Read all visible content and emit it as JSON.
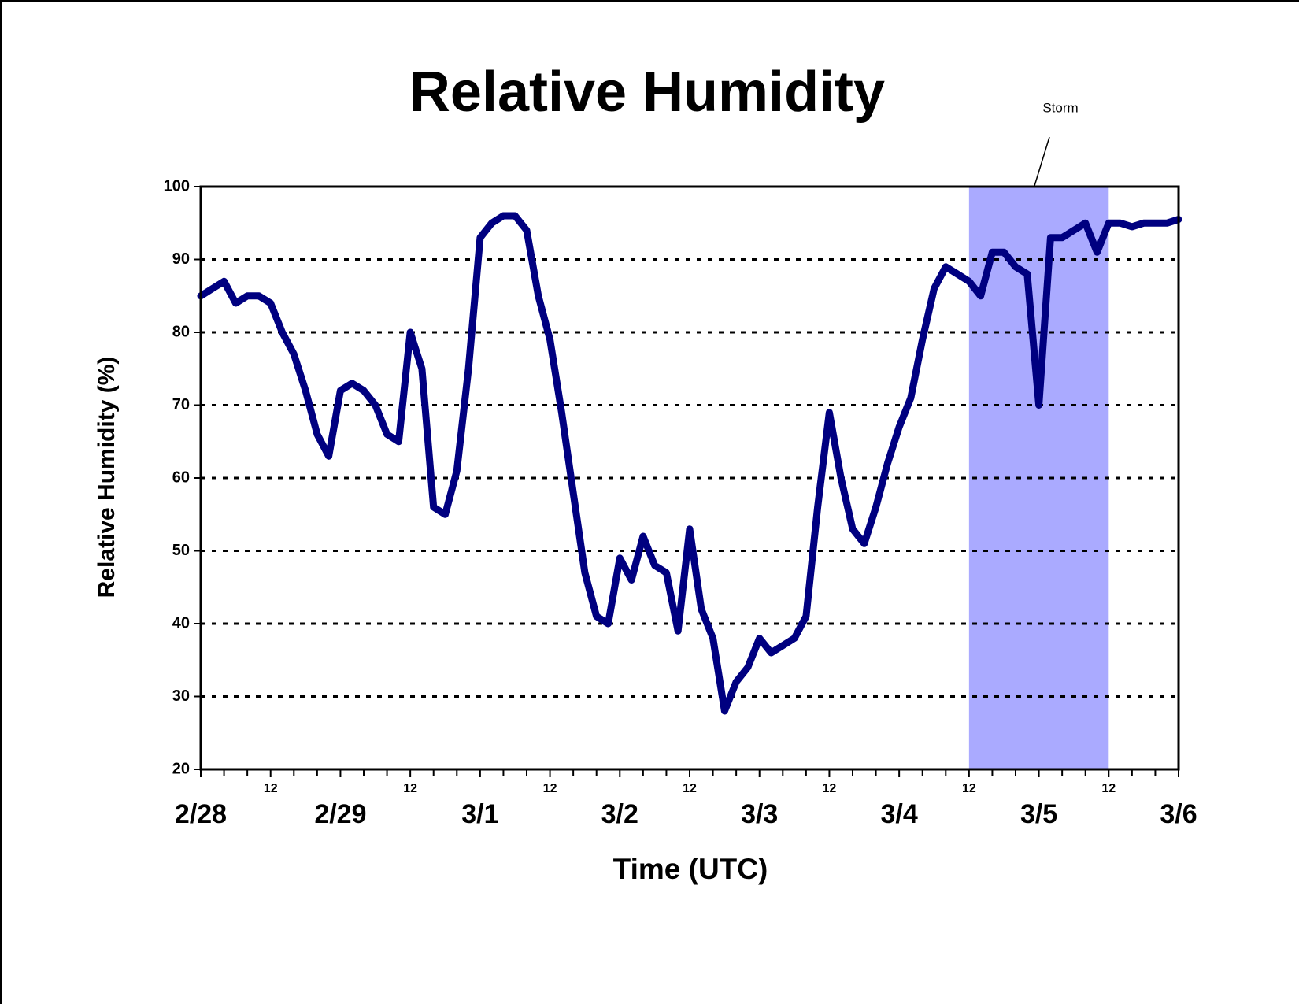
{
  "chart_data": {
    "type": "line",
    "title": "Relative Humidity",
    "x_label": "Time (UTC)",
    "y_label": "Relative Humidity (%)",
    "color": "#000080",
    "x": [
      0,
      2,
      4,
      6,
      8,
      10,
      12,
      14,
      16,
      18,
      20,
      22,
      24,
      26,
      28,
      30,
      32,
      34,
      36,
      38,
      40,
      42,
      44,
      46,
      48,
      50,
      52,
      54,
      56,
      58,
      60,
      62,
      64,
      66,
      68,
      70,
      72,
      74,
      76,
      78,
      80,
      82,
      84,
      86,
      88,
      90,
      92,
      94,
      96,
      98,
      100,
      102,
      104,
      106,
      108,
      110,
      112,
      114,
      116,
      118,
      120,
      122,
      124,
      126,
      128,
      130,
      132,
      134,
      136,
      138,
      140,
      142,
      144,
      146,
      148,
      150,
      152,
      154,
      156,
      158,
      160,
      162,
      164,
      166,
      168
    ],
    "values": [
      85,
      86,
      87,
      84,
      85,
      85,
      84,
      80,
      77,
      72,
      66,
      63,
      72,
      73,
      72,
      70,
      66,
      65,
      80,
      75,
      56,
      55,
      61,
      75,
      93,
      95,
      96,
      96,
      94,
      85,
      79,
      69,
      58,
      47,
      41,
      40,
      49,
      46,
      52,
      48,
      47,
      39,
      53,
      42,
      38,
      28,
      32,
      34,
      38,
      36,
      37,
      38,
      41,
      56,
      69,
      60,
      53,
      51,
      56,
      62,
      67,
      71,
      79,
      86,
      89,
      88,
      87,
      85,
      91,
      91,
      89,
      88,
      70,
      93,
      93,
      94,
      95,
      91,
      95,
      95,
      94.5,
      95,
      95,
      95,
      95.5
    ],
    "xlim": [
      0,
      168
    ],
    "xticks": [
      {
        "value": 0,
        "label": "2/28"
      },
      {
        "value": 12,
        "label": "12"
      },
      {
        "value": 24,
        "label": "2/29"
      },
      {
        "value": 36,
        "label": "12"
      },
      {
        "value": 48,
        "label": "3/1"
      },
      {
        "value": 60,
        "label": "12"
      },
      {
        "value": 72,
        "label": "3/2"
      },
      {
        "value": 84,
        "label": "12"
      },
      {
        "value": 96,
        "label": "3/3"
      },
      {
        "value": 108,
        "label": "12"
      },
      {
        "value": 120,
        "label": "3/4"
      },
      {
        "value": 132,
        "label": "12"
      },
      {
        "value": 144,
        "label": "3/5"
      },
      {
        "value": 156,
        "label": "12"
      },
      {
        "value": 168,
        "label": "3/6"
      }
    ],
    "xminorticks": [
      4,
      8,
      16,
      20,
      28,
      32,
      40,
      44,
      52,
      56,
      64,
      68,
      76,
      80,
      88,
      92,
      100,
      104,
      112,
      116,
      124,
      128,
      136,
      140,
      148,
      152,
      160,
      164
    ],
    "ylim": [
      20,
      100
    ],
    "yticks": [
      20,
      30,
      40,
      50,
      60,
      70,
      80,
      90,
      100
    ],
    "grid": true,
    "shaded_span": {
      "label": "Storm",
      "x": [
        132,
        156
      ],
      "color": "#aaaaff"
    }
  }
}
